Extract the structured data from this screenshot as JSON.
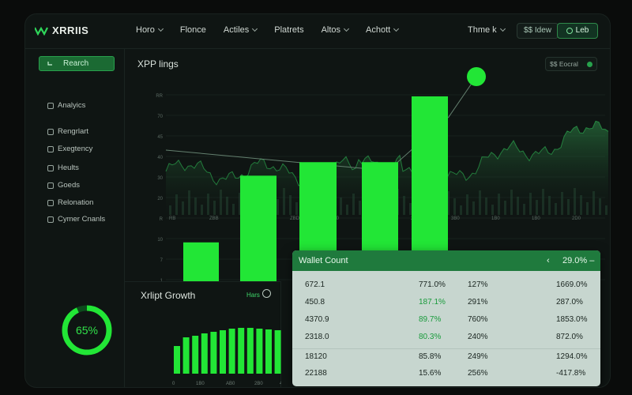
{
  "brand": {
    "name": "XRRIIS"
  },
  "nav": {
    "items": [
      {
        "label": "Horo",
        "has_menu": true
      },
      {
        "label": "Flonce",
        "has_menu": false
      },
      {
        "label": "Actiles",
        "has_menu": true
      },
      {
        "label": "Platrets",
        "has_menu": false
      },
      {
        "label": "Altos",
        "has_menu": true
      },
      {
        "label": "Achott",
        "has_menu": true
      }
    ],
    "theme_label": "Thme k",
    "view_button": "$$ Idew",
    "lab_button": "Leb"
  },
  "sidebar": {
    "search_label": "Rearch",
    "items": [
      {
        "label": "Analyics",
        "icon": "heart-icon"
      },
      {
        "label": "Rengrlart",
        "icon": "circle-icon"
      },
      {
        "label": "Exegtency",
        "icon": "grid-icon"
      },
      {
        "label": "Heults",
        "icon": "link-icon"
      },
      {
        "label": "Goeds",
        "icon": "box-icon"
      },
      {
        "label": "Relonation",
        "icon": "doc-icon"
      },
      {
        "label": "Cymer Cnanls",
        "icon": "chart-icon"
      }
    ],
    "donut": {
      "label": "65%",
      "value": 0.65
    }
  },
  "main_chart": {
    "title": "XPP lings",
    "pill_label": "$$ Eocral",
    "y_ticks": [
      "RR",
      "70",
      "45",
      "40",
      "30",
      "20",
      "R",
      "10",
      "7",
      "1"
    ],
    "x_ticks": [
      "RB",
      "ZBB",
      "ZB",
      "ZBD",
      "1D0",
      "1S0",
      "2B0",
      "3B0",
      "1B0",
      "1B0",
      "2D0",
      "120"
    ]
  },
  "growth": {
    "title": "Xrlipt Growth",
    "link": "Hars",
    "x_ticks": [
      "0",
      "1B0",
      "AB0",
      "2B0",
      "4B0"
    ]
  },
  "wallet": {
    "title": "Wallet Count",
    "pct": "29.0%",
    "rows": [
      {
        "c1": "672.1",
        "c2": "771.0%",
        "c3": "127%",
        "c4": "1669.0%",
        "hl": false
      },
      {
        "c1": "450.8",
        "c2": "187.1%",
        "c3": "291%",
        "c4": "287.0%",
        "hl": true
      },
      {
        "c1": "4370.9",
        "c2": "89.7%",
        "c3": "760%",
        "c4": "1853.0%",
        "hl": true
      },
      {
        "c1": "2318.0",
        "c2": "80.3%",
        "c3": "240%",
        "c4": "872.0%",
        "hl": true
      },
      {
        "c1": "18120",
        "c2": "85.8%",
        "c3": "249%",
        "c4": "1294.0%",
        "hl": false
      },
      {
        "c1": "22188",
        "c2": "15.6%",
        "c3": "256%",
        "c4": "-417.8%",
        "hl": false
      }
    ]
  },
  "chart_data": [
    {
      "type": "bar",
      "categories": [
        "",
        "",
        "",
        "",
        ""
      ],
      "series": [
        {
          "values": [
            44,
            118,
            133,
            133,
            206
          ]
        }
      ],
      "ylim": [
        0,
        220
      ],
      "title": "XPP lings"
    },
    {
      "type": "bar",
      "categories": [
        "",
        "",
        "",
        "",
        "",
        "",
        "",
        "",
        "",
        "",
        "",
        "",
        ""
      ],
      "series": [
        {
          "values": [
            35,
            46,
            48,
            51,
            53,
            55,
            57,
            58,
            58,
            57,
            56,
            55,
            55
          ]
        }
      ],
      "title": "Xrlipt Growth"
    }
  ],
  "colors": {
    "accent": "#22e636",
    "bg": "#0f1513",
    "table_bg": "#c7d6cf",
    "table_head": "#1f7a3d"
  }
}
